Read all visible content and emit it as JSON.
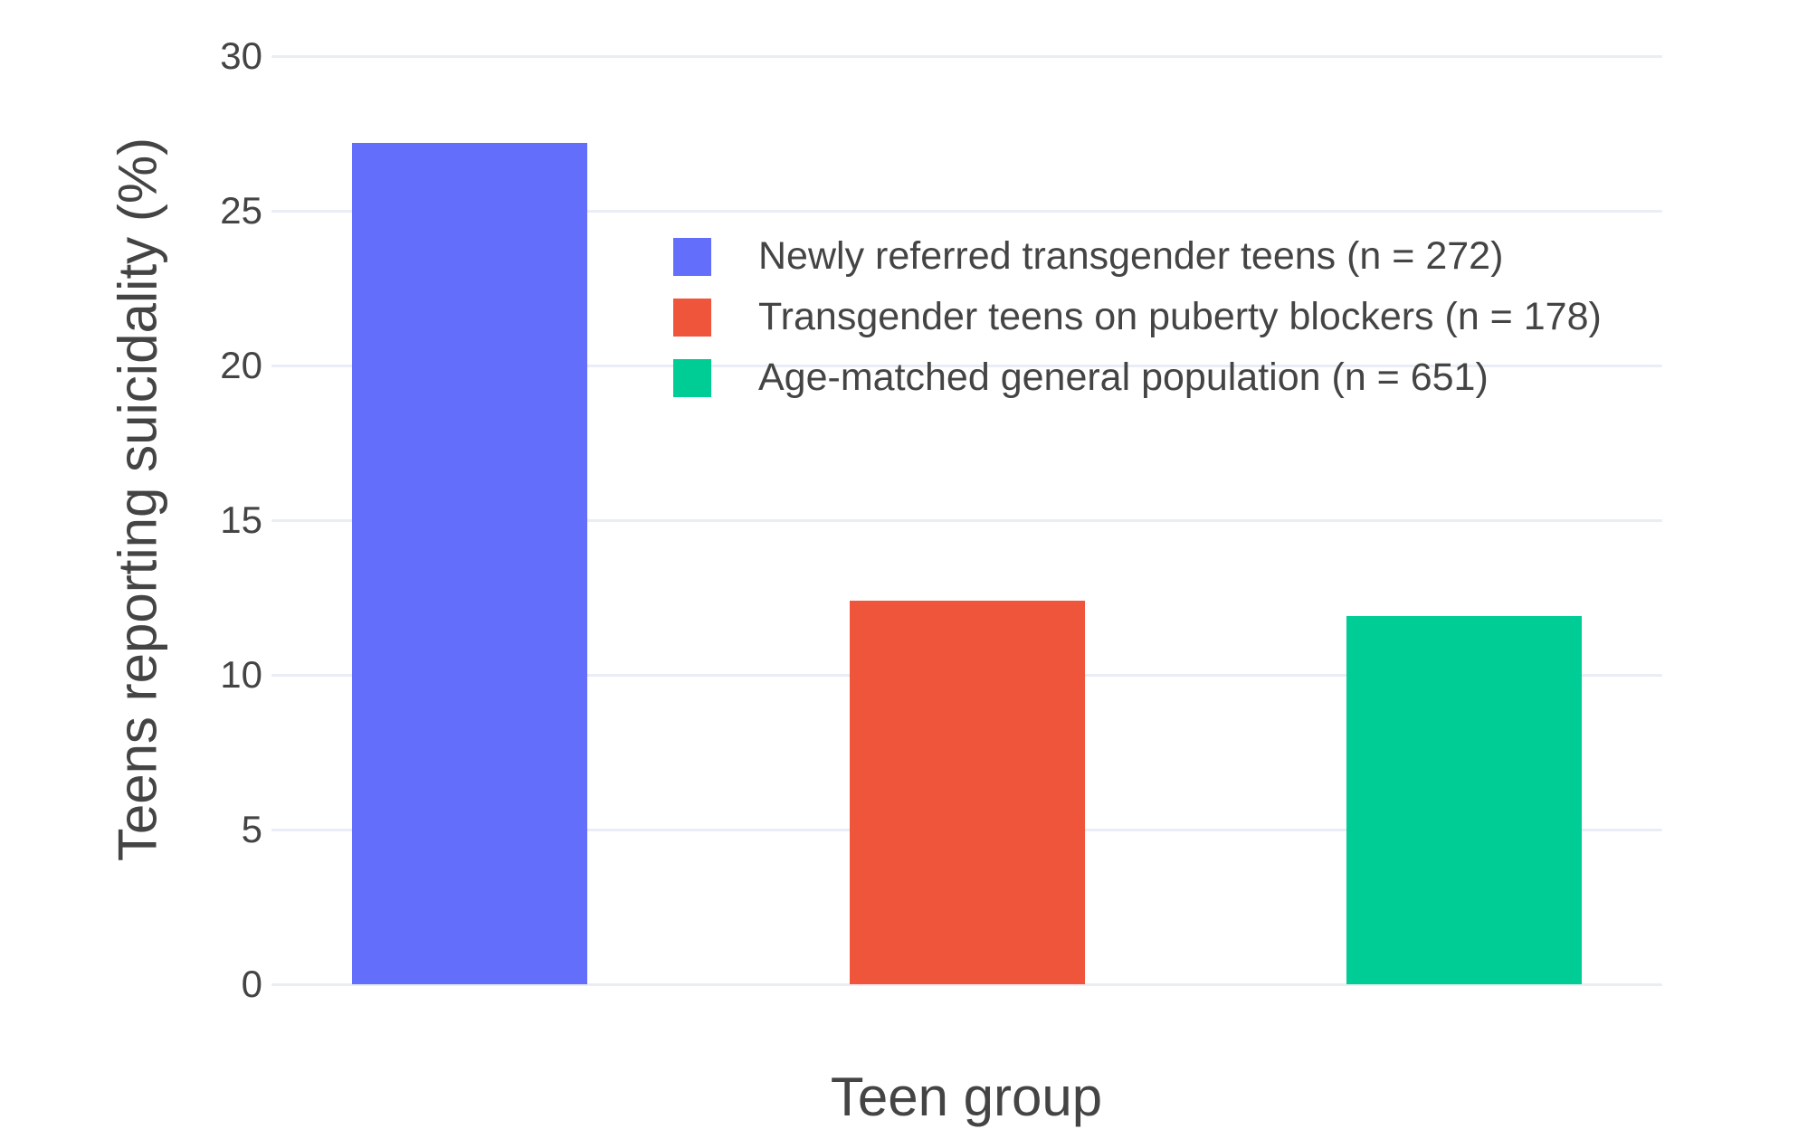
{
  "chart_data": {
    "type": "bar",
    "title": "",
    "xlabel": "Teen group",
    "ylabel": "Teens reporting suicidality (%)",
    "ylim": [
      0,
      30
    ],
    "yticks": [
      0,
      5,
      10,
      15,
      20,
      25,
      30
    ],
    "grid": true,
    "x_tick_labels_visible": false,
    "legend_position": "inside-top-center",
    "categories": [
      "Newly referred transgender teens",
      "Transgender teens on puberty blockers",
      "Age-matched general population"
    ],
    "series": [
      {
        "name": "Newly referred transgender teens (n = 272)",
        "value": 27.2,
        "color": "#636EFA"
      },
      {
        "name": "Transgender teens on puberty blockers (n = 178)",
        "value": 12.4,
        "color": "#EF553B"
      },
      {
        "name": "Age-matched general population (n = 651)",
        "value": 11.9,
        "color": "#00CC96"
      }
    ],
    "theme": {
      "background": "#FFFFFF",
      "grid_color": "#E9EDF5",
      "text_color": "#444444"
    }
  }
}
